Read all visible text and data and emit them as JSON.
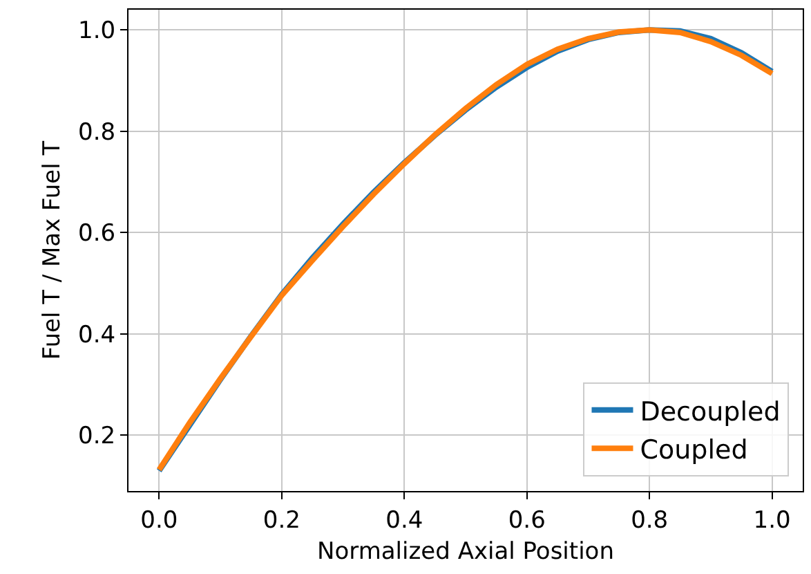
{
  "chart_data": {
    "type": "line",
    "xlabel": "Normalized Axial Position",
    "ylabel": "Fuel T / Max Fuel T",
    "x": [
      0,
      0.05,
      0.1,
      0.15,
      0.2,
      0.25,
      0.3,
      0.35,
      0.4,
      0.45,
      0.5,
      0.55,
      0.6,
      0.65,
      0.7,
      0.75,
      0.8,
      0.85,
      0.9,
      0.95,
      1.0
    ],
    "series": [
      {
        "name": "Decoupled",
        "color": "#1f77b4",
        "values": [
          0.13,
          0.22,
          0.31,
          0.396,
          0.478,
          0.55,
          0.617,
          0.68,
          0.738,
          0.792,
          0.842,
          0.887,
          0.926,
          0.958,
          0.981,
          0.995,
          1.0,
          0.998,
          0.983,
          0.955,
          0.918
        ]
      },
      {
        "name": "Coupled",
        "color": "#ff7f0e",
        "values": [
          0.132,
          0.225,
          0.312,
          0.395,
          0.476,
          0.545,
          0.612,
          0.676,
          0.736,
          0.793,
          0.845,
          0.892,
          0.932,
          0.962,
          0.983,
          0.996,
          1.0,
          0.995,
          0.977,
          0.95,
          0.914
        ]
      }
    ],
    "xlim": [
      -0.05,
      1.05
    ],
    "ylim": [
      0.09,
      1.04
    ],
    "xticks": [
      {
        "value": 0,
        "label": "0.0"
      },
      0.2,
      0.4,
      0.6,
      0.8,
      {
        "value": 1,
        "label": "1.0"
      }
    ],
    "yticks": [
      0.2,
      0.4,
      0.6,
      0.8,
      {
        "value": 1,
        "label": "1.0"
      }
    ],
    "grid": true,
    "legend": "bottom right",
    "marker": "none",
    "line_style": "solid"
  }
}
